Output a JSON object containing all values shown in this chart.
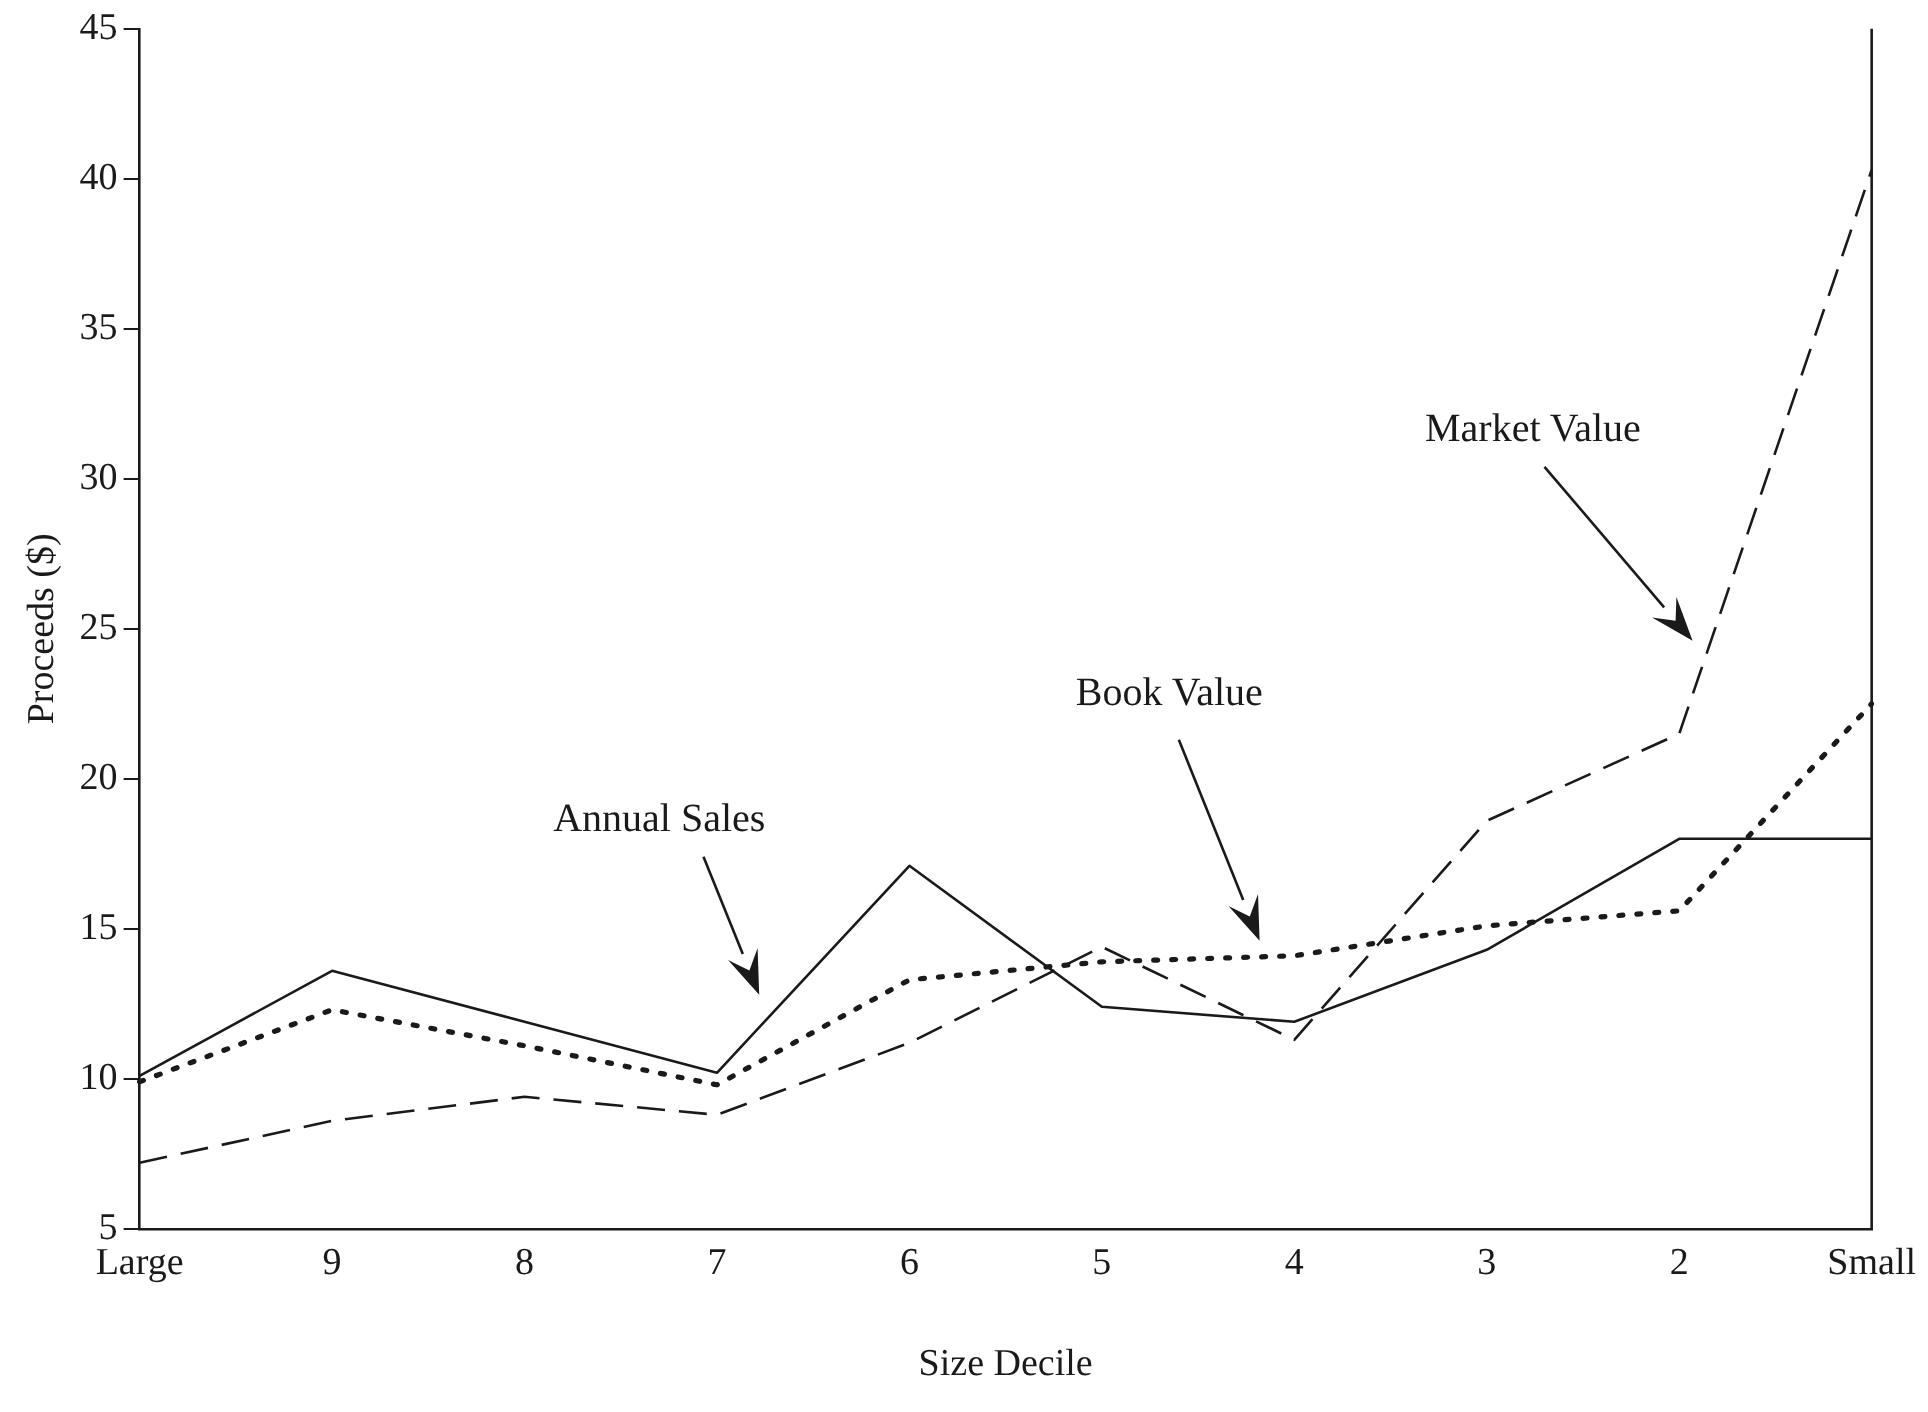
{
  "chart_data": {
    "type": "line",
    "xlabel": "Size Decile",
    "ylabel": "Proceeds ($)",
    "categories": [
      "Large",
      "9",
      "8",
      "7",
      "6",
      "5",
      "4",
      "3",
      "2",
      "Small"
    ],
    "ylim": [
      5,
      45
    ],
    "yticks": [
      5,
      10,
      15,
      20,
      25,
      30,
      35,
      40,
      45
    ],
    "grid": false,
    "legend": false,
    "marker": "none",
    "annotations": [
      "Annual Sales",
      "Book Value",
      "Market Value"
    ],
    "series": [
      {
        "color": "#1a1a1a",
        "line_style": "solid",
        "values": [
          10.1,
          13.6,
          11.9,
          10.2,
          17.1,
          12.4,
          11.9,
          14.3,
          18.0,
          18.0
        ]
      },
      {
        "color": "#1a1a1a",
        "line_style": "dotted",
        "values": [
          9.9,
          12.3,
          11.1,
          9.8,
          13.3,
          13.9,
          14.1,
          15.1,
          15.6,
          22.5
        ]
      },
      {
        "color": "#1a1a1a",
        "line_style": "dashed",
        "values": [
          7.2,
          8.6,
          9.4,
          8.8,
          11.2,
          14.4,
          11.3,
          18.6,
          21.5,
          40.3
        ]
      }
    ]
  }
}
